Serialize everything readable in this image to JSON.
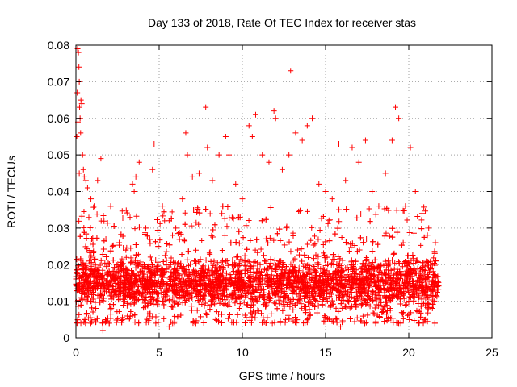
{
  "chart_data": {
    "type": "scatter",
    "title": "Day 133 of 2018, Rate Of TEC Index for receiver stas",
    "xlabel": "GPS time / hours",
    "ylabel": "ROTI / TECUs",
    "xlim": [
      0,
      25
    ],
    "ylim": [
      0,
      0.08
    ],
    "xticks": [
      0,
      5,
      10,
      15,
      20,
      25
    ],
    "xtick_labels": [
      "0",
      "5",
      "10",
      "15",
      "20",
      "25"
    ],
    "yticks": [
      0,
      0.01,
      0.02,
      0.03,
      0.04,
      0.05,
      0.06,
      0.07,
      0.08
    ],
    "ytick_labels": [
      "0",
      "0.01",
      "0.02",
      "0.03",
      "0.04",
      "0.05",
      "0.06",
      "0.07",
      "0.08"
    ],
    "grid": true,
    "marker": "plus",
    "series": [
      {
        "name": "ROTI",
        "color": "#ff0000",
        "points": [
          [
            0.05,
            0.055
          ],
          [
            0.08,
            0.067
          ],
          [
            0.1,
            0.079
          ],
          [
            0.15,
            0.078
          ],
          [
            0.18,
            0.074
          ],
          [
            0.2,
            0.07
          ],
          [
            0.22,
            0.063
          ],
          [
            0.25,
            0.06
          ],
          [
            0.3,
            0.065
          ],
          [
            0.35,
            0.064
          ],
          [
            0.12,
            0.059
          ],
          [
            0.28,
            0.056
          ],
          [
            0.4,
            0.05
          ],
          [
            0.45,
            0.046
          ],
          [
            0.5,
            0.044
          ],
          [
            0.6,
            0.043
          ],
          [
            0.7,
            0.041
          ],
          [
            0.2,
            0.045
          ],
          [
            0.9,
            0.038
          ],
          [
            1.1,
            0.036
          ],
          [
            1.3,
            0.043
          ],
          [
            1.5,
            0.049
          ],
          [
            1.6,
            0.004
          ],
          [
            1.62,
            0.002
          ],
          [
            1.8,
            0.027
          ],
          [
            2.2,
            0.025
          ],
          [
            2.6,
            0.026
          ],
          [
            3.0,
            0.024
          ],
          [
            3.4,
            0.042
          ],
          [
            3.5,
            0.04
          ],
          [
            3.6,
            0.044
          ],
          [
            3.8,
            0.048
          ],
          [
            4.2,
            0.03
          ],
          [
            4.6,
            0.046
          ],
          [
            4.7,
            0.053
          ],
          [
            5.2,
            0.036
          ],
          [
            5.6,
            0.032
          ],
          [
            6.0,
            0.03
          ],
          [
            6.4,
            0.038
          ],
          [
            6.6,
            0.056
          ],
          [
            6.7,
            0.05
          ],
          [
            7.0,
            0.044
          ],
          [
            7.4,
            0.045
          ],
          [
            7.8,
            0.063
          ],
          [
            7.9,
            0.052
          ],
          [
            8.2,
            0.043
          ],
          [
            8.6,
            0.05
          ],
          [
            9.0,
            0.055
          ],
          [
            9.2,
            0.05
          ],
          [
            9.6,
            0.042
          ],
          [
            10.0,
            0.038
          ],
          [
            10.4,
            0.058
          ],
          [
            10.6,
            0.055
          ],
          [
            10.8,
            0.061
          ],
          [
            11.2,
            0.05
          ],
          [
            11.6,
            0.048
          ],
          [
            11.9,
            0.062
          ],
          [
            12.0,
            0.06
          ],
          [
            12.4,
            0.046
          ],
          [
            12.8,
            0.05
          ],
          [
            12.9,
            0.073
          ],
          [
            13.2,
            0.056
          ],
          [
            13.6,
            0.054
          ],
          [
            13.9,
            0.058
          ],
          [
            14.2,
            0.06
          ],
          [
            14.6,
            0.042
          ],
          [
            15.0,
            0.04
          ],
          [
            15.4,
            0.038
          ],
          [
            15.8,
            0.053
          ],
          [
            16.2,
            0.043
          ],
          [
            16.6,
            0.052
          ],
          [
            17.0,
            0.048
          ],
          [
            17.4,
            0.054
          ],
          [
            17.8,
            0.04
          ],
          [
            18.2,
            0.036
          ],
          [
            18.6,
            0.045
          ],
          [
            19.0,
            0.054
          ],
          [
            19.2,
            0.063
          ],
          [
            19.4,
            0.06
          ],
          [
            19.8,
            0.036
          ],
          [
            20.1,
            0.052
          ],
          [
            20.4,
            0.04
          ],
          [
            20.8,
            0.034
          ],
          [
            21.2,
            0.03
          ],
          [
            21.6,
            0.026
          ],
          [
            2.8,
            0.005
          ],
          [
            4.8,
            0.004
          ],
          [
            5.6,
            0.003
          ],
          [
            8.4,
            0.005
          ],
          [
            12.6,
            0.005
          ],
          [
            15.9,
            0.003
          ],
          [
            19.4,
            0.004
          ],
          [
            20.6,
            0.004
          ],
          [
            21.0,
            0.005
          ]
        ],
        "density_band": {
          "x_range": [
            0.0,
            21.8
          ],
          "y_core": [
            0.008,
            0.022
          ],
          "y_spread": [
            0.004,
            0.036
          ],
          "count": 4200
        }
      }
    ]
  }
}
